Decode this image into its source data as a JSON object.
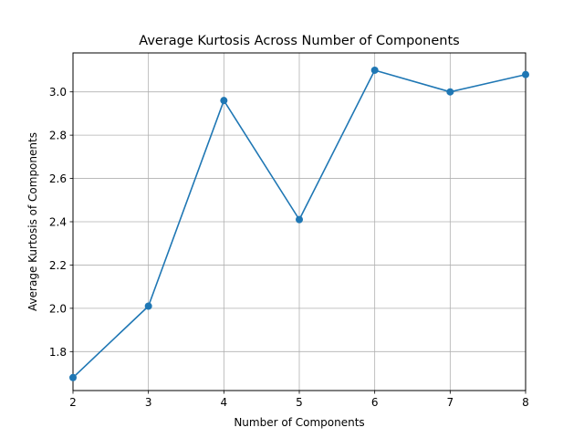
{
  "chart_data": {
    "type": "line",
    "title": "Average Kurtosis Across Number of Components",
    "xlabel": "Number of Components",
    "ylabel": "Average Kurtosis of Components",
    "x": [
      2,
      3,
      4,
      5,
      6,
      7,
      8
    ],
    "series": [
      {
        "values": [
          1.68,
          2.01,
          2.96,
          2.41,
          3.1,
          3.0,
          3.08
        ],
        "color": "#1f77b4",
        "marker": "circle"
      }
    ],
    "xlim": [
      2,
      8
    ],
    "ylim": [
      1.62,
      3.18
    ],
    "xticks": [
      "2",
      "3",
      "4",
      "5",
      "6",
      "7",
      "8"
    ],
    "yticks": [
      "1.8",
      "2.0",
      "2.2",
      "2.4",
      "2.6",
      "2.8",
      "3.0"
    ],
    "ytick_values": [
      1.8,
      2.0,
      2.2,
      2.4,
      2.6,
      2.8,
      3.0
    ],
    "grid": true
  }
}
